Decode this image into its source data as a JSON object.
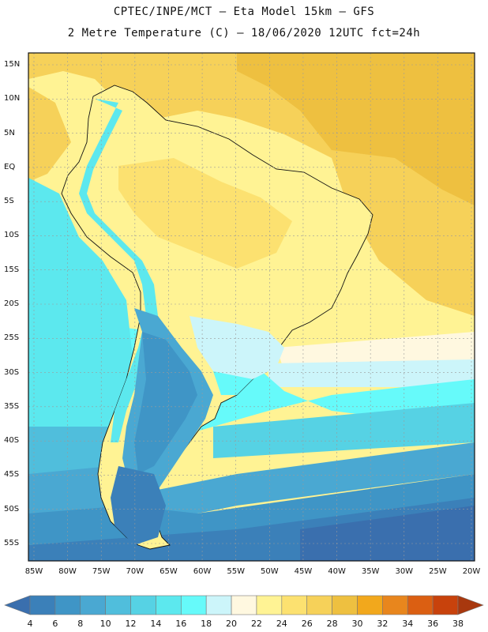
{
  "header": {
    "line1": "CPTEC/INPE/MCT –  Eta Model 15km – GFS",
    "line2": "2 Metre Temperature (C) – 18/06/2020 12UTC fct=24h"
  },
  "map": {
    "lat_labels": [
      "15N",
      "10N",
      "5N",
      "EQ",
      "5S",
      "10S",
      "15S",
      "20S",
      "25S",
      "30S",
      "35S",
      "40S",
      "45S",
      "50S",
      "55S"
    ],
    "lon_labels": [
      "85W",
      "80W",
      "75W",
      "70W",
      "65W",
      "60W",
      "55W",
      "50W",
      "45W",
      "40W",
      "35W",
      "30W",
      "25W",
      "20W"
    ],
    "lon_range": [
      -85,
      -20
    ],
    "lat_range": [
      -57,
      17
    ]
  },
  "colorbar": {
    "labels": [
      "4",
      "6",
      "8",
      "10",
      "12",
      "14",
      "16",
      "18",
      "20",
      "22",
      "24",
      "26",
      "28",
      "30",
      "32",
      "34",
      "36",
      "38"
    ],
    "colors": [
      "#3a6fae",
      "#3b80b9",
      "#3f95c6",
      "#4aa8d2",
      "#50bedc",
      "#56d2e4",
      "#5ce8ee",
      "#66fafa",
      "#ccf5fa",
      "#fff8e0",
      "#fff394",
      "#fce170",
      "#f6d159",
      "#eec040",
      "#f2a81c",
      "#e8861d",
      "#db5f12",
      "#c8420c",
      "#a8380e"
    ]
  }
}
